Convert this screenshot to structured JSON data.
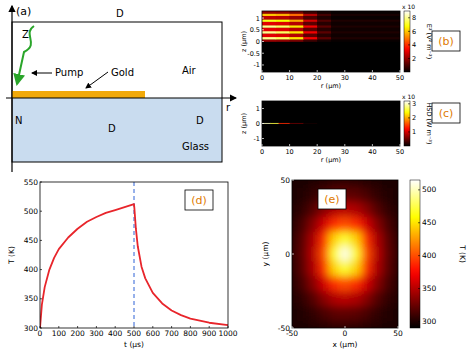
{
  "diagram": {
    "label": "(a)",
    "texts": [
      "Z",
      "D",
      "Pump",
      "Gold",
      "Air",
      "r",
      "N",
      "D",
      "D",
      "Glass"
    ]
  },
  "chart_data": [
    {
      "type": "heatmap",
      "title": "(b)",
      "x_label": "r (μm)",
      "y_label": "z (μm)",
      "xlim": [
        0,
        50
      ],
      "ylim": [
        -1.3,
        1.3
      ],
      "xticks": [
        0,
        10,
        20,
        30,
        40,
        50
      ],
      "yticks": [
        -1,
        -0.5,
        0,
        0.5,
        1
      ],
      "x_edges": [
        0,
        5,
        10,
        15,
        20,
        25,
        50
      ],
      "y_edges": [
        -1.3,
        0,
        0.1,
        0.2,
        0.35,
        0.45,
        0.6,
        0.7,
        0.85,
        0.95,
        1.1,
        1.2,
        1.3
      ],
      "cells": [
        [
          0,
          0,
          0,
          0,
          0,
          0
        ],
        [
          2,
          1.9,
          1.6,
          0.8,
          0.3,
          0.1
        ],
        [
          8,
          7.6,
          6.4,
          3.2,
          1.2,
          0.4
        ],
        [
          3,
          2.9,
          2.4,
          1.2,
          0.5,
          0.2
        ],
        [
          8,
          7.6,
          6.4,
          3.2,
          1.2,
          0.4
        ],
        [
          3,
          2.9,
          2.4,
          1.2,
          0.5,
          0.2
        ],
        [
          8,
          7.6,
          6.4,
          3.2,
          1.2,
          0.4
        ],
        [
          3,
          2.9,
          2.4,
          1.2,
          0.5,
          0.2
        ],
        [
          7,
          6.7,
          5.6,
          2.8,
          1.1,
          0.4
        ],
        [
          2.5,
          2.4,
          2,
          1,
          0.4,
          0.1
        ],
        [
          6,
          5.7,
          4.8,
          2.4,
          0.9,
          0.3
        ],
        [
          2,
          1.9,
          1.6,
          0.8,
          0.3,
          0.1
        ]
      ],
      "color_range": [
        0,
        9
      ],
      "color_ticks": [
        2,
        4,
        6,
        8
      ],
      "color_label": "E² (V² m⁻²)",
      "color_multiplier": "x 10"
    },
    {
      "type": "heatmap",
      "title": "(c)",
      "x_label": "r (μm)",
      "y_label": "z (μm)",
      "xlim": [
        0,
        50
      ],
      "ylim": [
        -1.5,
        1.5
      ],
      "xticks": [
        0,
        10,
        20,
        30,
        40,
        50
      ],
      "yticks": [
        -1,
        0,
        1
      ],
      "x_edges": [
        0,
        3,
        6,
        10,
        15,
        20,
        50
      ],
      "y_edges": [
        -1.5,
        0,
        0.06,
        1.5
      ],
      "cells": [
        [
          0,
          0,
          0,
          0,
          0,
          0
        ],
        [
          3,
          2.6,
          1.4,
          0.5,
          0.1,
          0
        ],
        [
          0,
          0,
          0,
          0,
          0,
          0
        ]
      ],
      "color_range": [
        0,
        3.2
      ],
      "color_ticks": [
        1,
        2,
        3
      ],
      "color_label": "HSD (W m⁻³)",
      "color_multiplier": "x 10"
    },
    {
      "type": "line",
      "title": "(d)",
      "x_label": "t (μs)",
      "y_label": "T (K)",
      "xlim": [
        0,
        1000
      ],
      "ylim": [
        300,
        550
      ],
      "xticks": [
        0,
        100,
        200,
        300,
        400,
        500,
        600,
        700,
        800,
        900,
        1000
      ],
      "yticks": [
        300,
        350,
        400,
        450,
        500,
        550
      ],
      "x": [
        0,
        10,
        25,
        50,
        75,
        100,
        150,
        200,
        250,
        300,
        350,
        400,
        450,
        500,
        502,
        510,
        520,
        540,
        560,
        600,
        650,
        700,
        750,
        800,
        900,
        1000
      ],
      "series": [
        {
          "color": "#e8252b",
          "values": [
            300,
            340,
            370,
            400,
            420,
            435,
            455,
            470,
            482,
            490,
            497,
            502,
            507,
            512,
            505,
            470,
            440,
            405,
            385,
            360,
            342,
            330,
            322,
            316,
            309,
            305
          ]
        }
      ],
      "vline": {
        "x": 500,
        "color": "#2f62d6",
        "line_style": "dashed"
      }
    },
    {
      "type": "heatmap",
      "title": "(e)",
      "x_label": "x (μm)",
      "y_label": "y (μm)",
      "xlim": [
        -50,
        50
      ],
      "ylim": [
        -50,
        50
      ],
      "xticks": [
        -50,
        0,
        50
      ],
      "yticks": [
        -50,
        0,
        50
      ],
      "x": [
        -50,
        -40,
        -30,
        -20,
        -10,
        0,
        10,
        20,
        30,
        40,
        50
      ],
      "y": [
        50,
        40,
        30,
        20,
        10,
        0,
        -10,
        -20,
        -30,
        -40,
        -50
      ],
      "cells": [
        [
          300,
          300,
          301,
          303,
          305,
          306,
          305,
          303,
          301,
          300,
          300
        ],
        [
          300,
          302,
          306,
          314,
          320,
          322,
          320,
          314,
          306,
          302,
          300
        ],
        [
          301,
          306,
          318,
          335,
          348,
          352,
          348,
          335,
          318,
          306,
          301
        ],
        [
          303,
          314,
          335,
          360,
          390,
          400,
          390,
          360,
          335,
          314,
          303
        ],
        [
          305,
          320,
          348,
          390,
          445,
          470,
          445,
          390,
          348,
          320,
          305
        ],
        [
          306,
          322,
          352,
          400,
          470,
          510,
          470,
          400,
          352,
          322,
          306
        ],
        [
          305,
          320,
          348,
          390,
          445,
          470,
          445,
          390,
          348,
          320,
          305
        ],
        [
          303,
          314,
          335,
          360,
          390,
          400,
          390,
          360,
          335,
          314,
          303
        ],
        [
          301,
          306,
          318,
          335,
          348,
          352,
          348,
          335,
          318,
          306,
          301
        ],
        [
          300,
          302,
          306,
          314,
          320,
          322,
          320,
          314,
          306,
          302,
          300
        ],
        [
          300,
          300,
          301,
          303,
          305,
          306,
          305,
          303,
          301,
          300,
          300
        ]
      ],
      "color_range": [
        290,
        515
      ],
      "color_ticks": [
        300,
        350,
        400,
        450,
        500
      ],
      "color_label": "T (K)"
    }
  ]
}
